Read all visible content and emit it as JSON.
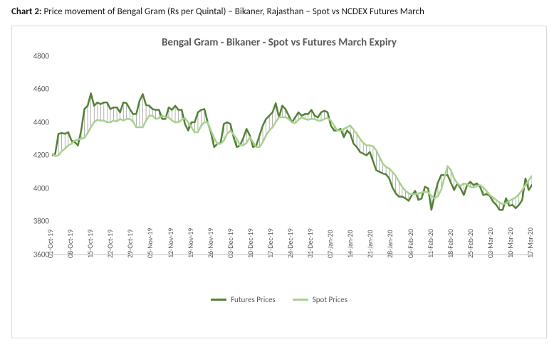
{
  "caption_lead": "Chart 2:",
  "caption_rest": " Price movement of Bengal Gram (Rs per Quintal) – Bikaner, Rajasthan – Spot vs NCDEX Futures March",
  "chart": {
    "type": "line",
    "title": "Bengal Gram - Bikaner - Spot vs Futures March Expiry",
    "title_fontsize": 15,
    "label_fontsize": 11,
    "background_color": "#ffffff",
    "border_color": "#d9d9d9",
    "axis_color": "#bfbfbf",
    "text_color": "#595959",
    "ylim": [
      3600,
      4800
    ],
    "ytick_step": 200,
    "yticks": [
      3600,
      3800,
      4000,
      4200,
      4400,
      4600,
      4800
    ],
    "x_labels": [
      "01-Oct-19",
      "08-Oct-19",
      "15-Oct-19",
      "22-Oct-19",
      "29-Oct-19",
      "05-Nov-19",
      "12-Nov-19",
      "19-Nov-19",
      "26-Nov-19",
      "03-Dec-19",
      "10-Dec-19",
      "17-Dec-19",
      "24-Dec-19",
      "31-Dec-19",
      "07-Jan-20",
      "14-Jan-20",
      "21-Jan-20",
      "28-Jan-20",
      "04-Feb-20",
      "11-Feb-20",
      "18-Feb-20",
      "25-Feb-20",
      "03-Mar-20",
      "10-Mar-20",
      "17-Mar-20"
    ],
    "x_label_step": 1,
    "series": [
      {
        "name": "Futures Prices",
        "color": "#548235",
        "line_width": 2.5,
        "values": [
          4200,
          4210,
          4330,
          4335,
          4330,
          4340,
          4290,
          4280,
          4260,
          4350,
          4480,
          4500,
          4575,
          4500,
          4520,
          4510,
          4520,
          4520,
          4480,
          4490,
          4490,
          4460,
          4520,
          4515,
          4480,
          4450,
          4450,
          4530,
          4570,
          4505,
          4500,
          4480,
          4475,
          4475,
          4420,
          4420,
          4490,
          4475,
          4500,
          4475,
          4475,
          4390,
          4350,
          4400,
          4400,
          4460,
          4475,
          4480,
          4400,
          4340,
          4250,
          4270,
          4275,
          4390,
          4400,
          4390,
          4310,
          4250,
          4260,
          4305,
          4360,
          4320,
          4250,
          4260,
          4320,
          4380,
          4420,
          4440,
          4460,
          4515,
          4430,
          4500,
          4480,
          4440,
          4400,
          4430,
          4460,
          4440,
          4450,
          4450,
          4475,
          4440,
          4430,
          4460,
          4470,
          4460,
          4380,
          4350,
          4350,
          4360,
          4310,
          4350,
          4330,
          4270,
          4250,
          4220,
          4210,
          4200,
          4220,
          4165,
          4110,
          4100,
          4090,
          4085,
          4060,
          4005,
          3970,
          3950,
          3950,
          3940,
          3925,
          3960,
          3985,
          3930,
          3940,
          4010,
          4000,
          3870,
          3960,
          4035,
          4080,
          4080,
          4080,
          4035,
          3990,
          4030,
          4000,
          3960,
          4020,
          4040,
          4020,
          4030,
          4010,
          3960,
          3965,
          3955,
          3920,
          3900,
          3870,
          3870,
          3940,
          3895,
          3900,
          3880,
          3900,
          3930,
          4060,
          3990,
          4020
        ]
      },
      {
        "name": "Spot Prices",
        "color": "#a9d18e",
        "line_width": 2.5,
        "values": [
          4210,
          4195,
          4200,
          4225,
          4240,
          4260,
          4270,
          4290,
          4295,
          4300,
          4305,
          4335,
          4370,
          4400,
          4415,
          4410,
          4410,
          4400,
          4400,
          4410,
          4405,
          4420,
          4410,
          4420,
          4420,
          4405,
          4370,
          4370,
          4370,
          4410,
          4440,
          4440,
          4420,
          4425,
          4440,
          4430,
          4430,
          4410,
          4400,
          4400,
          4415,
          4425,
          4400,
          4370,
          4340,
          4340,
          4380,
          4400,
          4400,
          4350,
          4305,
          4270,
          4270,
          4290,
          4330,
          4350,
          4325,
          4300,
          4260,
          4260,
          4275,
          4310,
          4280,
          4250,
          4250,
          4280,
          4320,
          4350,
          4370,
          4400,
          4430,
          4430,
          4430,
          4420,
          4400,
          4395,
          4415,
          4430,
          4420,
          4415,
          4420,
          4420,
          4410,
          4410,
          4420,
          4425,
          4410,
          4380,
          4350,
          4350,
          4360,
          4370,
          4380,
          4355,
          4330,
          4300,
          4275,
          4260,
          4260,
          4255,
          4230,
          4190,
          4150,
          4130,
          4120,
          4100,
          4075,
          4040,
          4010,
          3985,
          3970,
          3965,
          3965,
          3970,
          3975,
          3980,
          3975,
          3955,
          3940,
          3955,
          3990,
          4065,
          4135,
          4110,
          4060,
          4030,
          4015,
          4030,
          4025,
          4010,
          4005,
          4015,
          4020,
          4005,
          3985,
          3960,
          3945,
          3930,
          3915,
          3905,
          3910,
          3925,
          3935,
          3945,
          3965,
          3990,
          4020,
          4050,
          4075
        ]
      }
    ],
    "dropline_color": "#7f7f7f",
    "dropline_width": 0.6
  },
  "legend": {
    "items": [
      {
        "label": "Futures Prices",
        "color": "#548235"
      },
      {
        "label": "Spot Prices",
        "color": "#a9d18e"
      }
    ]
  }
}
